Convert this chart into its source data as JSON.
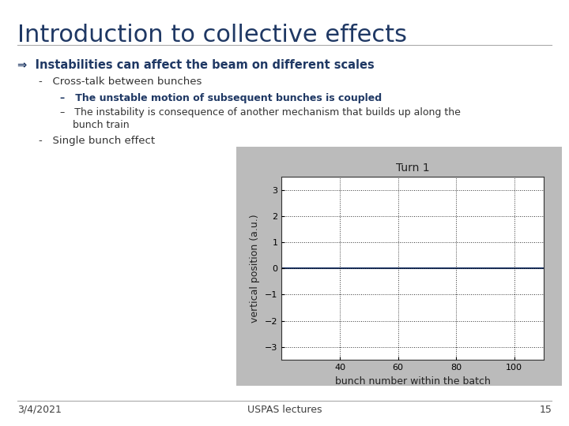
{
  "title": "Introduction to collective effects",
  "title_color": "#1F3864",
  "title_fontsize": 22,
  "bg_color": "#FFFFFF",
  "arrow_text": "Instabilities can affect the beam on different scales",
  "arrow_text_color": "#1F3864",
  "bullet1": "Cross-talk between bunches",
  "sub_bullet1_bold": "The unstable motion of subsequent bunches is coupled",
  "sub_bullet1_color": "#1F3864",
  "sub_bullet2": "The instability is consequence of another mechanism that builds up along the\n                bunch train",
  "bullet2": "Single bunch effect",
  "plot_title": "Turn 1",
  "xlabel": "bunch number within the batch",
  "ylabel": "vertical position (a.u.)",
  "xlim": [
    20,
    110
  ],
  "ylim": [
    -3.5,
    3.5
  ],
  "yticks": [
    -3,
    -2,
    -1,
    0,
    1,
    2,
    3
  ],
  "xticks": [
    40,
    60,
    80,
    100
  ],
  "line_y": 0,
  "line_color": "#1F3868",
  "line_width": 1.5,
  "grid_color": "#000000",
  "grid_style": "dotted",
  "plot_bg": "#FFFFFF",
  "plot_outer_bg": "#BBBBBB",
  "footer_date": "3/4/2021",
  "footer_lectures": "USPAS lectures",
  "footer_page": "15",
  "footer_color": "#404040",
  "footer_fontsize": 9
}
